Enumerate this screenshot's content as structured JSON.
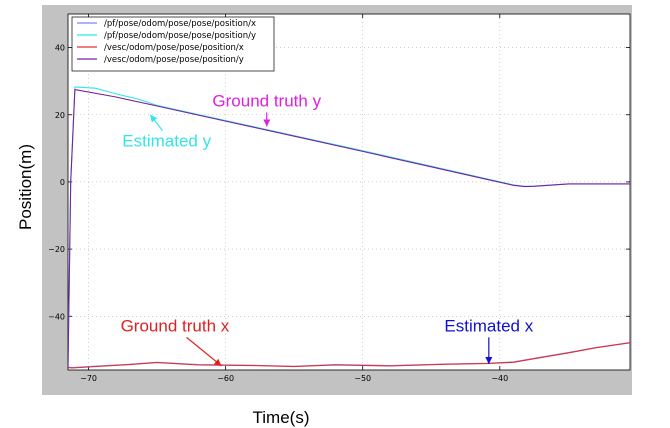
{
  "chart_data": {
    "type": "line",
    "xlabel": "Time(s)",
    "ylabel": "Position(m)",
    "xlim": [
      -71.5,
      -30.5
    ],
    "ylim": [
      -56,
      50
    ],
    "x_ticks": [
      -70,
      -60,
      -50,
      -40
    ],
    "y_ticks": [
      -40,
      -20,
      0,
      20,
      40
    ],
    "grid": true,
    "legend_position": "top-left",
    "series": [
      {
        "name": "/pf/pose/odom/pose/pose/position/x",
        "color": "#8080ff",
        "x": [
          -71.5,
          -71.2,
          -70,
          -67,
          -65,
          -62,
          -58,
          -55,
          -52,
          -48,
          -44,
          -41,
          -39,
          -37,
          -35,
          -33,
          -30.5
        ],
        "y": [
          -55.2,
          -55.3,
          -55.0,
          -54.3,
          -53.7,
          -54.4,
          -54.6,
          -54.9,
          -54.4,
          -54.7,
          -54.2,
          -54.0,
          -53.6,
          -52.2,
          -50.8,
          -49.3,
          -47.8
        ]
      },
      {
        "name": "/pf/pose/odom/pose/pose/position/y",
        "color": "#33e6e6",
        "x": [
          -71.5,
          -71.3,
          -71.0,
          -69.5,
          -68,
          -66.5,
          -65,
          -60,
          -55,
          -50,
          -45,
          -41,
          -39,
          -38.2,
          -37.5,
          -35,
          -33,
          -30.5
        ],
        "y": [
          -55.5,
          0,
          28.3,
          27.9,
          26.2,
          24.8,
          22.8,
          18.3,
          13.8,
          9.3,
          4.7,
          1.0,
          -0.9,
          -1.3,
          -1.2,
          -0.6,
          -0.6,
          -0.6
        ]
      },
      {
        "name": "/vesc/odom/pose/pose/position/x",
        "color": "#e03030",
        "x": [
          -71.5,
          -71.2,
          -70,
          -67,
          -65,
          -62,
          -58,
          -55,
          -52,
          -48,
          -44,
          -41,
          -39,
          -37,
          -35,
          -33,
          -30.5
        ],
        "y": [
          -55.3,
          -55.4,
          -55.1,
          -54.4,
          -53.8,
          -54.5,
          -54.7,
          -55.0,
          -54.5,
          -54.8,
          -54.3,
          -54.1,
          -53.7,
          -52.3,
          -50.9,
          -49.4,
          -47.9
        ]
      },
      {
        "name": "/vesc/odom/pose/pose/position/y",
        "color": "#7a1fa2",
        "x": [
          -71.5,
          -71.3,
          -71.0,
          -68,
          -65,
          -60,
          -55,
          -50,
          -45,
          -41,
          -39,
          -38.2,
          -37.5,
          -35,
          -33,
          -30.5
        ],
        "y": [
          -55.5,
          0,
          27.5,
          25.3,
          22.6,
          18.1,
          13.6,
          9.1,
          4.5,
          0.8,
          -1.0,
          -1.4,
          -1.3,
          -0.6,
          -0.6,
          -0.6
        ]
      }
    ],
    "annotations": [
      {
        "text": "Ground truth y",
        "color": "#e020e0",
        "at": [
          -57,
          16.5
        ],
        "text_at": [
          -57,
          22.5
        ]
      },
      {
        "text": "Estimated y",
        "color": "#33e6e6",
        "at": [
          -65.5,
          20
        ],
        "text_at": [
          -64.3,
          10.5
        ]
      },
      {
        "text": "Ground truth x",
        "color": "#e02020",
        "at": [
          -60.3,
          -54.8
        ],
        "text_at": [
          -63.7,
          -44.5
        ]
      },
      {
        "text": "Estimated x",
        "color": "#1010d0",
        "at": [
          -40.8,
          -54.2
        ],
        "text_at": [
          -40.8,
          -44.5
        ]
      }
    ]
  }
}
